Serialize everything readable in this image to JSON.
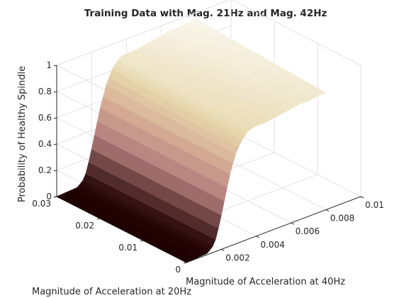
{
  "chart_data": {
    "type": "surface",
    "title": "Training Data with Mag. 21Hz and Mag. 42Hz",
    "xlabel": "Magnitude of Acceleration at 40Hz",
    "ylabel": "Magnitude of Acceleration at 20Hz",
    "zlabel": "Probability of Healthy Spindle",
    "xlim": [
      0,
      0.01
    ],
    "ylim": [
      0,
      0.03
    ],
    "zlim": [
      0,
      1
    ],
    "xticks": [
      "0.002",
      "0.004",
      "0.006",
      "0.008",
      "0.01"
    ],
    "yticks": [
      "0",
      "0.01",
      "0.02",
      "0.03"
    ],
    "zticks": [
      "0",
      "0.2",
      "0.4",
      "0.6",
      "0.8",
      "1"
    ],
    "grid": true,
    "colormap": "pink",
    "surface": {
      "x_range": [
        0,
        0.008
      ],
      "y_range": [
        0,
        0.03
      ],
      "edge_x": [
        0,
        0.0012,
        0.0016,
        0.0019,
        0.0022,
        0.0025,
        0.0028,
        0.0032,
        0.0036,
        0.004,
        0.0045,
        0.005,
        0.0055,
        0.006,
        0.0065,
        0.007,
        0.0075,
        0.008
      ],
      "z_at_y0": [
        0,
        0.01,
        0.06,
        0.2,
        0.38,
        0.55,
        0.68,
        0.78,
        0.83,
        0.84,
        0.84,
        0.85,
        0.86,
        0.87,
        0.88,
        0.88,
        0.89,
        0.89
      ],
      "z_plateau_at_y_max": 0.95
    }
  }
}
